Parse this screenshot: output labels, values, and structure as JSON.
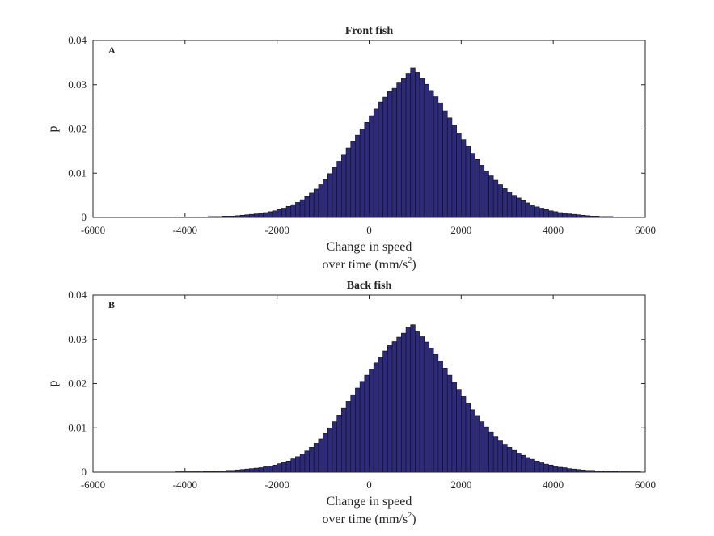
{
  "chart_data": [
    {
      "type": "bar",
      "title": "Front fish",
      "panel_label": "A",
      "xlabel_line1": "Change in speed",
      "xlabel_line2": "over time (mm/s",
      "xlabel_sup": "2",
      "xlabel_line2_end": ")",
      "ylabel": "p",
      "xlim": [
        -6000,
        6000
      ],
      "ylim": [
        0,
        0.04
      ],
      "xticks": [
        -6000,
        -4000,
        -2000,
        0,
        2000,
        4000,
        6000
      ],
      "yticks": [
        0,
        0.01,
        0.02,
        0.03,
        0.04
      ],
      "xtick_labels": [
        "-6000",
        "-4000",
        "-2000",
        "0",
        "2000",
        "4000",
        "6000"
      ],
      "ytick_labels": [
        "0",
        "0.01",
        "0.02",
        "0.03",
        "0.04"
      ],
      "bar_color": "#2e2a7a",
      "bar_edge": "#111111",
      "bins": {
        "start": -5600,
        "width": 100,
        "values": [
          0,
          0,
          0,
          0,
          0,
          0,
          0,
          0,
          0,
          0,
          0,
          0,
          0,
          0,
          0.0001,
          0.0001,
          0.0001,
          0.0001,
          0.0001,
          0.0001,
          0.0001,
          0.0002,
          0.0002,
          0.0002,
          0.0003,
          0.0003,
          0.0003,
          0.0004,
          0.0005,
          0.0006,
          0.0007,
          0.0008,
          0.0009,
          0.0011,
          0.0013,
          0.0015,
          0.0018,
          0.0021,
          0.0025,
          0.0029,
          0.0034,
          0.004,
          0.0047,
          0.0055,
          0.0064,
          0.0074,
          0.0086,
          0.0099,
          0.0113,
          0.0127,
          0.0141,
          0.0157,
          0.0172,
          0.0186,
          0.02,
          0.0215,
          0.023,
          0.0245,
          0.0261,
          0.0272,
          0.0285,
          0.0292,
          0.0304,
          0.0314,
          0.0326,
          0.0338,
          0.0328,
          0.0314,
          0.0301,
          0.0287,
          0.0273,
          0.0259,
          0.0241,
          0.0225,
          0.0209,
          0.0191,
          0.0176,
          0.0161,
          0.0145,
          0.0131,
          0.0118,
          0.0105,
          0.0094,
          0.0084,
          0.0074,
          0.0065,
          0.0057,
          0.005,
          0.0044,
          0.0038,
          0.0033,
          0.0028,
          0.0024,
          0.0021,
          0.0018,
          0.0015,
          0.0013,
          0.0011,
          0.0009,
          0.0008,
          0.0007,
          0.0006,
          0.0005,
          0.0004,
          0.0003,
          0.0003,
          0.0002,
          0.0002,
          0.0002,
          0.0001,
          0.0001,
          0.0001,
          0.0001,
          0.0001,
          0.0001,
          0,
          0,
          0,
          0,
          0
        ]
      }
    },
    {
      "type": "bar",
      "title": "Back fish",
      "panel_label": "B",
      "xlabel_line1": "Change in speed",
      "xlabel_line2": "over time (mm/s",
      "xlabel_sup": "2",
      "xlabel_line2_end": ")",
      "ylabel": "p",
      "xlim": [
        -6000,
        6000
      ],
      "ylim": [
        0,
        0.04
      ],
      "xticks": [
        -6000,
        -4000,
        -2000,
        0,
        2000,
        4000,
        6000
      ],
      "yticks": [
        0,
        0.01,
        0.02,
        0.03,
        0.04
      ],
      "xtick_labels": [
        "-6000",
        "-4000",
        "-2000",
        "0",
        "2000",
        "4000",
        "6000"
      ],
      "ytick_labels": [
        "0",
        "0.01",
        "0.02",
        "0.03",
        "0.04"
      ],
      "bar_color": "#2e2a7a",
      "bar_edge": "#111111",
      "bins": {
        "start": -5600,
        "width": 100,
        "values": [
          0,
          0,
          0,
          0,
          0,
          0,
          0,
          0,
          0,
          0,
          0,
          0,
          0,
          0,
          0.0001,
          0.0001,
          0.0001,
          0.0001,
          0.0001,
          0.0001,
          0.0002,
          0.0002,
          0.0002,
          0.0003,
          0.0003,
          0.0004,
          0.0004,
          0.0005,
          0.0006,
          0.0007,
          0.0008,
          0.0009,
          0.001,
          0.0012,
          0.0014,
          0.0016,
          0.0019,
          0.0022,
          0.0025,
          0.003,
          0.0035,
          0.0041,
          0.0048,
          0.0056,
          0.0065,
          0.0075,
          0.0087,
          0.01,
          0.0114,
          0.0129,
          0.0144,
          0.016,
          0.0175,
          0.019,
          0.0205,
          0.0219,
          0.0233,
          0.0247,
          0.026,
          0.0274,
          0.0286,
          0.0295,
          0.0305,
          0.0314,
          0.0328,
          0.0333,
          0.0317,
          0.0306,
          0.0294,
          0.028,
          0.0266,
          0.0251,
          0.0235,
          0.0219,
          0.0203,
          0.0187,
          0.0171,
          0.0156,
          0.0141,
          0.0128,
          0.0114,
          0.0102,
          0.0091,
          0.0081,
          0.0072,
          0.0063,
          0.0056,
          0.0049,
          0.0043,
          0.0038,
          0.0033,
          0.0029,
          0.0025,
          0.0021,
          0.0018,
          0.0016,
          0.0013,
          0.0011,
          0.001,
          0.0008,
          0.0007,
          0.0006,
          0.0005,
          0.0004,
          0.0004,
          0.0003,
          0.0003,
          0.0002,
          0.0002,
          0.0002,
          0.0001,
          0.0001,
          0.0001,
          0.0001,
          0.0001,
          0,
          0,
          0,
          0,
          0
        ]
      }
    }
  ]
}
